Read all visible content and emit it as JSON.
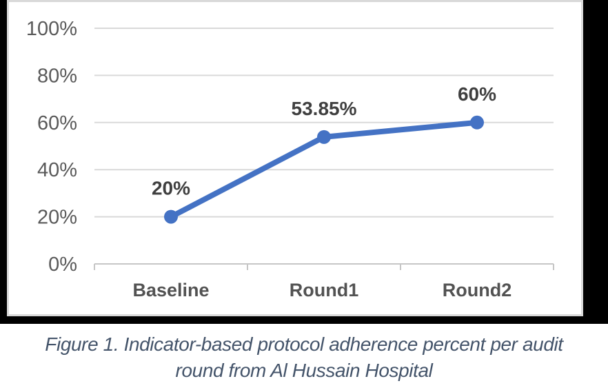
{
  "chart_data": {
    "type": "line",
    "categories": [
      "Baseline",
      "Round1",
      "Round2"
    ],
    "series": [
      {
        "name": "Indicator-based protocol adherence percent",
        "values": [
          20,
          53.85,
          60
        ],
        "labels": [
          "20%",
          "53.85%",
          "60%"
        ]
      }
    ],
    "title": "",
    "xlabel": "",
    "ylabel": "",
    "ylim": [
      0,
      100
    ],
    "y_ticks": [
      "0%",
      "20%",
      "40%",
      "60%",
      "80%",
      "100%"
    ],
    "grid": true,
    "legend": "none",
    "colors": {
      "line": "#4472C4",
      "marker": "#4472C4",
      "gridline": "#D9D9D9",
      "axis_line": "#C6C6C6",
      "y_tick_label": "#595959",
      "x_tick_label": "#525252",
      "data_label": "#3F3F3F",
      "chart_border": "#D9D9D9",
      "chart_background": "#FFFFFF",
      "frame_background": "#000000"
    }
  },
  "caption": {
    "lines": [
      "Figure 1. Indicator-based protocol adherence percent per audit",
      "round from Al Hussain Hospital"
    ],
    "color": "#44546A"
  }
}
